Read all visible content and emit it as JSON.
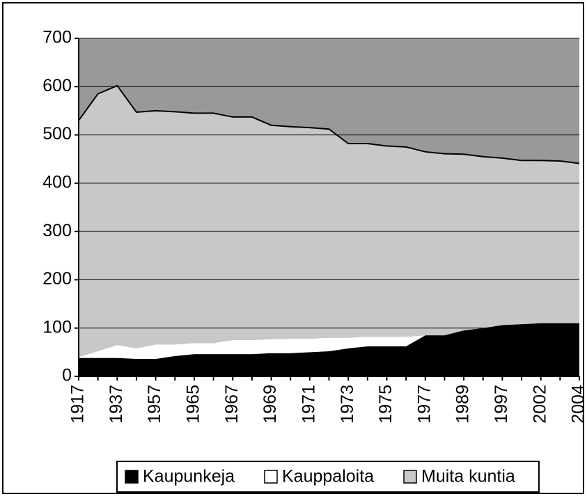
{
  "chart_data": {
    "type": "stacked_area",
    "categories": [
      "1917",
      null,
      "1937",
      null,
      "1957",
      null,
      "1965",
      null,
      "1967",
      null,
      "1969",
      null,
      "1971",
      null,
      "1973",
      null,
      "1975",
      null,
      "1977",
      null,
      "1989",
      null,
      "1997",
      null,
      "2002",
      null,
      "2004"
    ],
    "series": [
      {
        "name": "Kaupunkeja",
        "color": "#000000",
        "values": [
          38,
          38,
          38,
          36,
          36,
          42,
          46,
          46,
          46,
          46,
          48,
          48,
          50,
          52,
          58,
          62,
          62,
          62,
          85,
          85,
          95,
          100,
          106,
          108,
          110,
          110,
          110
        ]
      },
      {
        "name": "Kauppaloita",
        "color": "#ffffff",
        "values": [
          2,
          14,
          27,
          22,
          30,
          24,
          23,
          23,
          29,
          29,
          29,
          30,
          28,
          28,
          22,
          20,
          20,
          20,
          0,
          0,
          0,
          0,
          0,
          0,
          0,
          0,
          0
        ]
      },
      {
        "name": "Muita kuntia",
        "color": "#c8c8c8",
        "values": [
          490,
          533,
          537,
          489,
          484,
          482,
          476,
          476,
          462,
          462,
          443,
          439,
          437,
          432,
          402,
          400,
          395,
          393,
          380,
          376,
          365,
          355,
          346,
          339,
          337,
          336,
          331
        ]
      }
    ],
    "ylim": [
      0,
      700
    ],
    "yticks": [
      0,
      100,
      200,
      300,
      400,
      500,
      600,
      700
    ],
    "grid": true,
    "plot_background": "#999999",
    "legend": "bottom"
  }
}
